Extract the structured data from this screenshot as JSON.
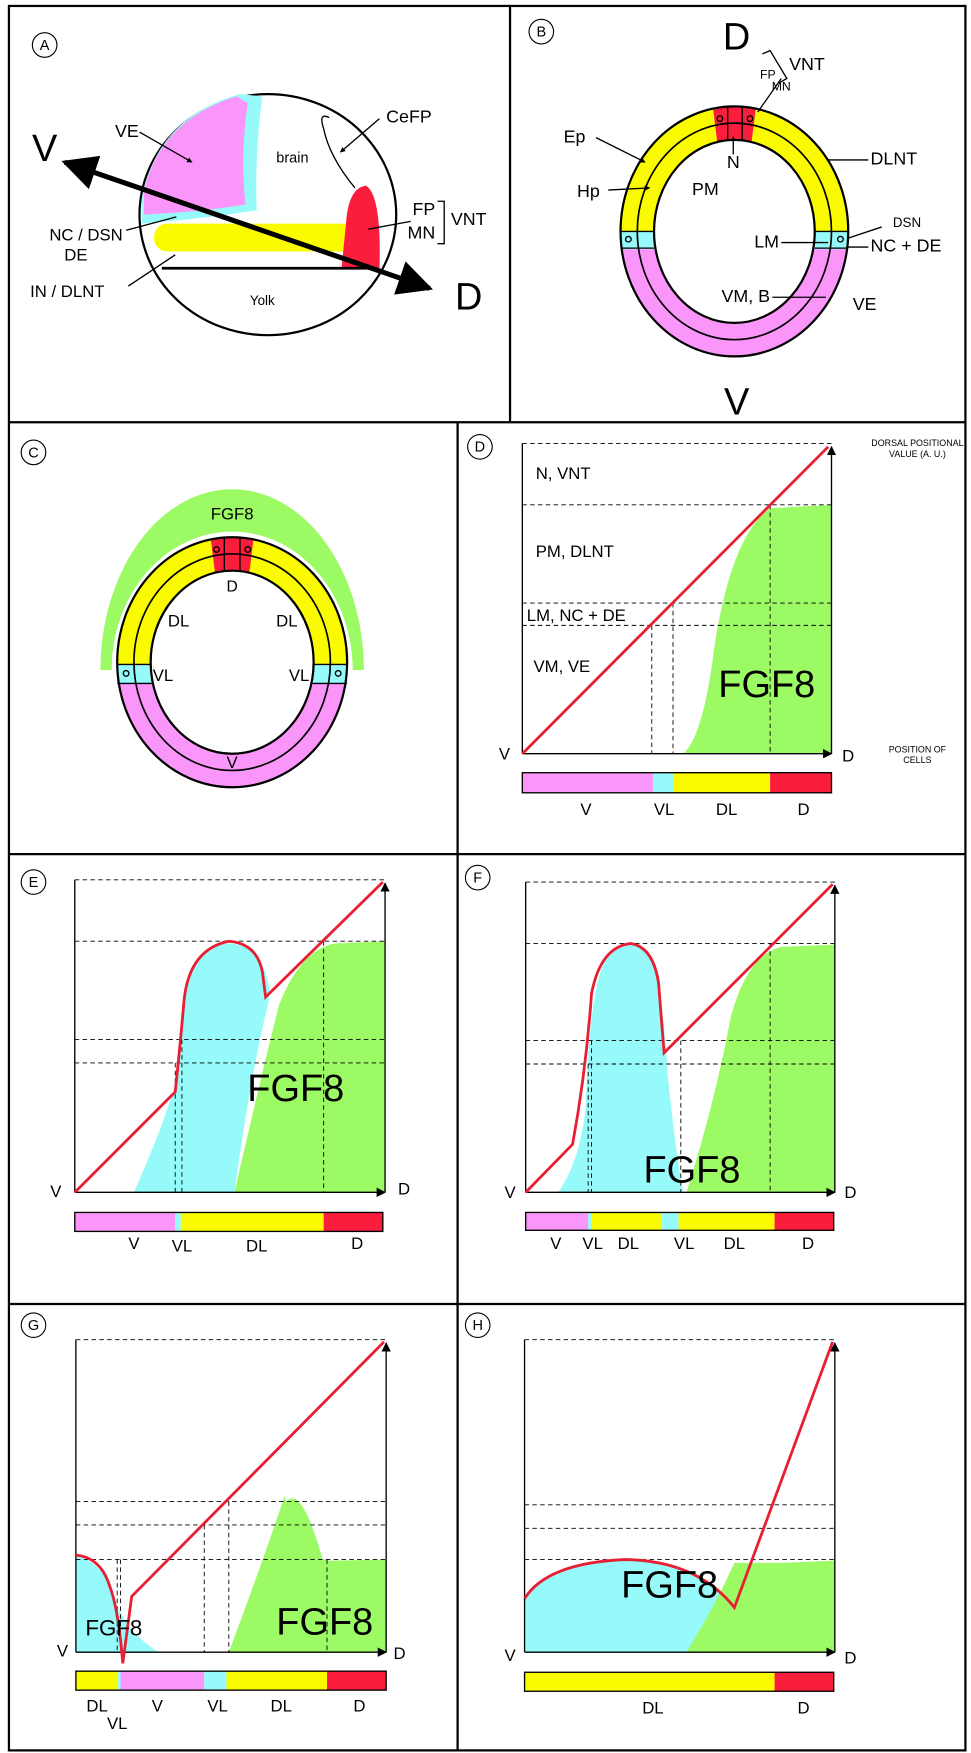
{
  "panels": [
    {
      "label": "A",
      "texts": [
        "VE",
        "brain",
        "CeFP",
        "V",
        "NC / DSN",
        "DE",
        "FP",
        "MN",
        "VNT",
        "IN / DLNT",
        "Yolk",
        "D"
      ]
    },
    {
      "label": "B",
      "texts": [
        "D",
        "VNT",
        "FP",
        "MN",
        "Ep",
        "N",
        "DLNT",
        "Hp",
        "PM",
        "DSN",
        "LM",
        "NC + DE",
        "VM, B",
        "VE",
        "V"
      ]
    },
    {
      "label": "C",
      "texts": [
        "FGF8",
        "D",
        "DL",
        "DL",
        "VL",
        "VL",
        "V"
      ]
    },
    {
      "label": "D",
      "texts": [
        "DORSAL POSITIONAL",
        "VALUE (A. U.)",
        "N, VNT",
        "PM, DLNT",
        "LM, NC + DE",
        "VM, VE",
        "FGF8",
        "V",
        "D",
        "POSITION OF",
        "CELLS",
        "V",
        "VL",
        "DL",
        "D"
      ]
    },
    {
      "label": "E",
      "texts": [
        "FGF8",
        "V",
        "D",
        "V",
        "VL",
        "DL",
        "D"
      ]
    },
    {
      "label": "F",
      "texts": [
        "FGF8",
        "V",
        "D",
        "V",
        "VL",
        "DL",
        "VL",
        "DL",
        "D"
      ]
    },
    {
      "label": "G",
      "texts": [
        "FGF8",
        "FGF8",
        "V",
        "D",
        "DL",
        "VL",
        "V",
        "VL",
        "DL",
        "D"
      ]
    },
    {
      "label": "H",
      "texts": [
        "FGF8",
        "V",
        "D",
        "DL",
        "D"
      ]
    }
  ]
}
